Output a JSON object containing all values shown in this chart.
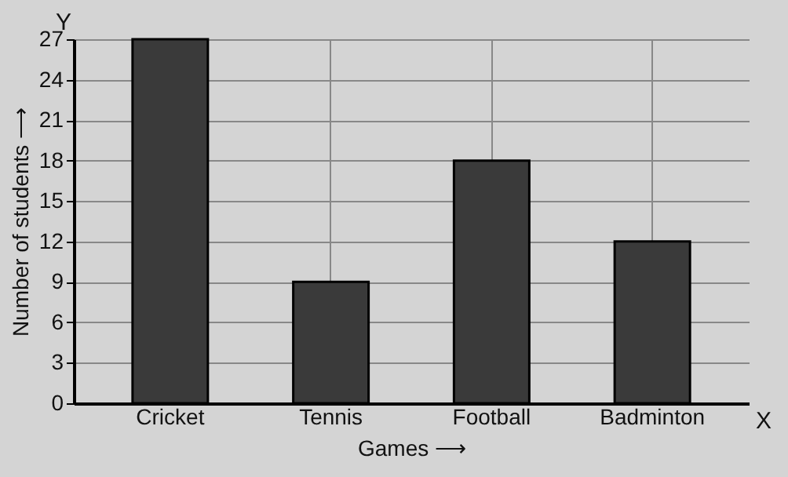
{
  "chart_data": {
    "type": "bar",
    "xlabel": "Games ⟶",
    "ylabel": "Number of students ⟶",
    "annotations": [
      "Y",
      "X"
    ],
    "categories": [
      "Cricket",
      "Tennis",
      "Football",
      "Badminton"
    ],
    "values": [
      27,
      9,
      18,
      12
    ],
    "color": "#3a3a3a",
    "ylim": [
      0,
      27
    ],
    "yticks": [
      0,
      3,
      6,
      9,
      12,
      15,
      18,
      21,
      24,
      27
    ],
    "grid": true
  }
}
